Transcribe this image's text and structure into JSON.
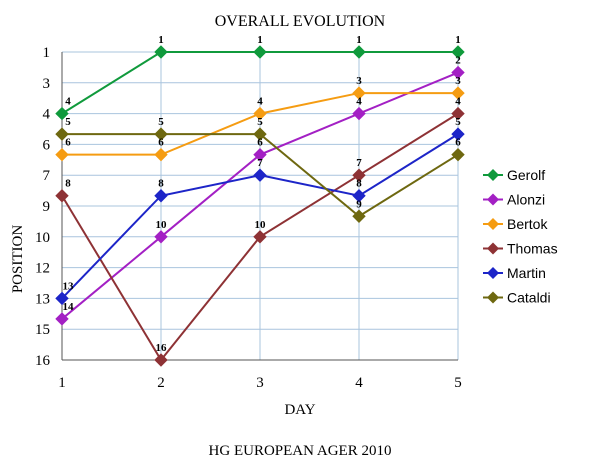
{
  "chart_data": {
    "type": "line",
    "title": "OVERALL EVOLUTION",
    "xlabel": "DAY",
    "ylabel": "POSITION",
    "footer": "HG EUROPEAN AGER 2010",
    "x": [
      1,
      2,
      3,
      4,
      5
    ],
    "x_tick_labels": [
      "1",
      "2",
      "3",
      "4",
      "5"
    ],
    "y_tick_labels": [
      "1",
      "3",
      "4",
      "6",
      "7",
      "9",
      "10",
      "12",
      "13",
      "15",
      "16"
    ],
    "ylim": [
      1,
      16
    ],
    "y_inverted": true,
    "grid": true,
    "legend": "right",
    "series": [
      {
        "name": "Gerolf",
        "color": "#109a3c",
        "values": [
          4,
          1,
          1,
          1,
          1
        ]
      },
      {
        "name": "Alonzi",
        "color": "#a320c4",
        "values": [
          14,
          10,
          6,
          4,
          2
        ]
      },
      {
        "name": "Bertok",
        "color": "#f59c12",
        "values": [
          6,
          6,
          4,
          3,
          3
        ]
      },
      {
        "name": "Thomas",
        "color": "#8e3235",
        "values": [
          8,
          16,
          10,
          7,
          4
        ]
      },
      {
        "name": "Martin",
        "color": "#1d25c8",
        "values": [
          13,
          8,
          7,
          8,
          5
        ]
      },
      {
        "name": "Cataldi",
        "color": "#6e6810",
        "values": [
          5,
          5,
          5,
          9,
          6
        ]
      }
    ]
  }
}
